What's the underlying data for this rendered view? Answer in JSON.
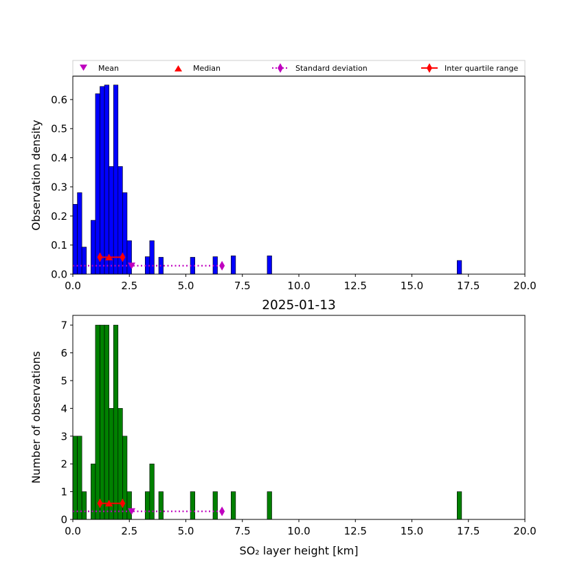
{
  "chart_data": [
    {
      "type": "bar",
      "xlabel": "",
      "ylabel": "Observation density",
      "xlim": [
        0,
        20
      ],
      "ylim": [
        0,
        0.68
      ],
      "xticks": [
        "0.0",
        "2.5",
        "5.0",
        "7.5",
        "10.0",
        "12.5",
        "15.0",
        "17.5",
        "20.0"
      ],
      "yticks": [
        "0.0",
        "0.1",
        "0.2",
        "0.3",
        "0.4",
        "0.5",
        "0.6"
      ],
      "bar_color": "#0000ff",
      "bars": [
        {
          "x0": 0.0,
          "x1": 0.2,
          "value": 0.24
        },
        {
          "x0": 0.2,
          "x1": 0.4,
          "value": 0.28
        },
        {
          "x0": 0.4,
          "x1": 0.6,
          "value": 0.093
        },
        {
          "x0": 0.8,
          "x1": 1.0,
          "value": 0.185
        },
        {
          "x0": 1.0,
          "x1": 1.2,
          "value": 0.62
        },
        {
          "x0": 1.2,
          "x1": 1.4,
          "value": 0.645
        },
        {
          "x0": 1.4,
          "x1": 1.6,
          "value": 0.65
        },
        {
          "x0": 1.6,
          "x1": 1.8,
          "value": 0.37
        },
        {
          "x0": 1.8,
          "x1": 2.0,
          "value": 0.65
        },
        {
          "x0": 2.0,
          "x1": 2.2,
          "value": 0.37
        },
        {
          "x0": 2.2,
          "x1": 2.4,
          "value": 0.28
        },
        {
          "x0": 2.4,
          "x1": 2.6,
          "value": 0.115
        },
        {
          "x0": 3.2,
          "x1": 3.4,
          "value": 0.06
        },
        {
          "x0": 3.4,
          "x1": 3.6,
          "value": 0.115
        },
        {
          "x0": 3.8,
          "x1": 4.0,
          "value": 0.058
        },
        {
          "x0": 5.2,
          "x1": 5.4,
          "value": 0.058
        },
        {
          "x0": 6.2,
          "x1": 6.4,
          "value": 0.06
        },
        {
          "x0": 7.0,
          "x1": 7.2,
          "value": 0.063
        },
        {
          "x0": 8.6,
          "x1": 8.8,
          "value": 0.063
        },
        {
          "x0": 17.0,
          "x1": 17.2,
          "value": 0.047
        }
      ],
      "stats": {
        "marker_y": 0.058,
        "mean": {
          "x": 2.6,
          "y": 0.029
        },
        "median": {
          "x": 1.6
        },
        "iqr": [
          1.2,
          2.2
        ],
        "std": {
          "y": 0.029,
          "x0": 0.0,
          "x1": 6.6
        }
      }
    },
    {
      "type": "bar",
      "title": "2025-01-13",
      "xlabel": "SO₂ layer height [km]",
      "ylabel": "Number of observations",
      "xlim": [
        0,
        20
      ],
      "ylim": [
        0,
        7.35
      ],
      "xticks": [
        "0.0",
        "2.5",
        "5.0",
        "7.5",
        "10.0",
        "12.5",
        "15.0",
        "17.5",
        "20.0"
      ],
      "yticks": [
        "0",
        "1",
        "2",
        "3",
        "4",
        "5",
        "6",
        "7"
      ],
      "bar_color": "#008000",
      "bars": [
        {
          "x0": 0.0,
          "x1": 0.2,
          "value": 3
        },
        {
          "x0": 0.2,
          "x1": 0.4,
          "value": 3
        },
        {
          "x0": 0.4,
          "x1": 0.6,
          "value": 1
        },
        {
          "x0": 0.8,
          "x1": 1.0,
          "value": 2
        },
        {
          "x0": 1.0,
          "x1": 1.2,
          "value": 7
        },
        {
          "x0": 1.2,
          "x1": 1.4,
          "value": 7
        },
        {
          "x0": 1.4,
          "x1": 1.6,
          "value": 7
        },
        {
          "x0": 1.6,
          "x1": 1.8,
          "value": 4
        },
        {
          "x0": 1.8,
          "x1": 2.0,
          "value": 7
        },
        {
          "x0": 2.0,
          "x1": 2.2,
          "value": 4
        },
        {
          "x0": 2.2,
          "x1": 2.4,
          "value": 3
        },
        {
          "x0": 2.4,
          "x1": 2.6,
          "value": 1
        },
        {
          "x0": 3.2,
          "x1": 3.4,
          "value": 1
        },
        {
          "x0": 3.4,
          "x1": 3.6,
          "value": 2
        },
        {
          "x0": 3.8,
          "x1": 4.0,
          "value": 1
        },
        {
          "x0": 5.2,
          "x1": 5.4,
          "value": 1
        },
        {
          "x0": 6.2,
          "x1": 6.4,
          "value": 1
        },
        {
          "x0": 7.0,
          "x1": 7.2,
          "value": 1
        },
        {
          "x0": 8.6,
          "x1": 8.8,
          "value": 1
        },
        {
          "x0": 17.0,
          "x1": 17.2,
          "value": 1
        }
      ],
      "stats": {
        "marker_y": 0.58,
        "mean": {
          "x": 2.6,
          "y": 0.29
        },
        "median": {
          "x": 1.6
        },
        "iqr": [
          1.2,
          2.2
        ],
        "std": {
          "y": 0.29,
          "x0": 0.0,
          "x1": 6.6
        }
      }
    }
  ],
  "legend": {
    "placement": "top",
    "items": [
      {
        "label": "Mean",
        "marker": "triangle-down",
        "color": "#bf00bf"
      },
      {
        "label": "Median",
        "marker": "triangle-up",
        "color": "#ff0000"
      },
      {
        "label": "Standard deviation",
        "marker": "diamond-dotted",
        "color": "#bf00bf"
      },
      {
        "label": "Inter quartile range",
        "marker": "diamond-line",
        "color": "#ff0000"
      }
    ]
  }
}
